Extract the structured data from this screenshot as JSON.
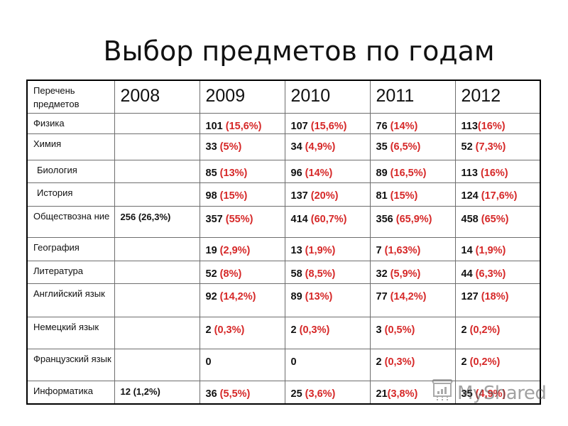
{
  "title": "Выбор предметов по годам",
  "table": {
    "header": {
      "subject_label": "Перечень предметов",
      "years": [
        "2008",
        "2009",
        "2010",
        "2011",
        "2012"
      ]
    },
    "rows": [
      {
        "subject": "Физика",
        "y2008": {
          "num": "",
          "pct": ""
        },
        "cells": [
          {
            "num": "101",
            "pct": "(15,6%)"
          },
          {
            "num": "107",
            "pct": "(15,6%)"
          },
          {
            "num": "76",
            "pct": "(14%)"
          },
          {
            "num": "113",
            "pct": "(16%)"
          }
        ]
      },
      {
        "subject": "Химия",
        "y2008": {
          "num": "",
          "pct": ""
        },
        "cells": [
          {
            "num": "33",
            "pct": "(5%)"
          },
          {
            "num": "34",
            "pct": "(4,9%)"
          },
          {
            "num": "35",
            "pct": "(6,5%)"
          },
          {
            "num": "52",
            "pct": "(7,3%)"
          }
        ]
      },
      {
        "subject": "Биология",
        "y2008": {
          "num": "",
          "pct": ""
        },
        "cells": [
          {
            "num": "85",
            "pct": "(13%)"
          },
          {
            "num": "96",
            "pct": "(14%)"
          },
          {
            "num": "89",
            "pct": "(16,5%)"
          },
          {
            "num": "113",
            "pct": "(16%)"
          }
        ]
      },
      {
        "subject": "История",
        "y2008": {
          "num": "",
          "pct": ""
        },
        "cells": [
          {
            "num": "98",
            "pct": "(15%)"
          },
          {
            "num": "137",
            "pct": "(20%)"
          },
          {
            "num": "81",
            "pct": "(15%)"
          },
          {
            "num": "124",
            "pct": "(17,6%)"
          }
        ]
      },
      {
        "subject": "Обществозна ние",
        "y2008": {
          "num": "256",
          "pct": "(26,3%)"
        },
        "cells": [
          {
            "num": "357",
            "pct": "(55%)"
          },
          {
            "num": "414",
            "pct": "(60,7%)"
          },
          {
            "num": "356",
            "pct": "(65,9%)"
          },
          {
            "num": "458",
            "pct": "(65%)"
          }
        ]
      },
      {
        "subject": "География",
        "y2008": {
          "num": "",
          "pct": ""
        },
        "cells": [
          {
            "num": "19",
            "pct": "(2,9%)"
          },
          {
            "num": "13",
            "pct": "(1,9%)"
          },
          {
            "num": "7",
            "pct": "(1,63%)"
          },
          {
            "num": "14",
            "pct": "(1,9%)"
          }
        ]
      },
      {
        "subject": "Литература",
        "y2008": {
          "num": "",
          "pct": ""
        },
        "cells": [
          {
            "num": "52",
            "pct": "(8%)"
          },
          {
            "num": "58",
            "pct": "(8,5%)"
          },
          {
            "num": "32",
            "pct": "(5,9%)"
          },
          {
            "num": "44",
            "pct": "(6,3%)"
          }
        ]
      },
      {
        "subject": "Английский язык",
        "y2008": {
          "num": "",
          "pct": ""
        },
        "cells": [
          {
            "num": "92",
            "pct": "(14,2%)"
          },
          {
            "num": "89",
            "pct": "(13%)"
          },
          {
            "num": "77",
            "pct": "(14,2%)"
          },
          {
            "num": "127",
            "pct": "(18%)"
          }
        ]
      },
      {
        "subject": "Немецкий язык",
        "y2008": {
          "num": "",
          "pct": ""
        },
        "cells": [
          {
            "num": "2",
            "pct": "(0,3%)"
          },
          {
            "num": "2",
            "pct": "(0,3%)"
          },
          {
            "num": "3",
            "pct": "(0,5%)"
          },
          {
            "num": "2",
            "pct": "(0,2%)"
          }
        ]
      },
      {
        "subject": "Французский язык",
        "y2008": {
          "num": "",
          "pct": ""
        },
        "cells": [
          {
            "num": "0",
            "pct": ""
          },
          {
            "num": "0",
            "pct": ""
          },
          {
            "num": "2",
            "pct": "(0,3%)"
          },
          {
            "num": "2",
            "pct": "(0,2%)"
          }
        ]
      },
      {
        "subject": "Информатика",
        "y2008": {
          "num": "12",
          "pct": "(1,2%)"
        },
        "cells": [
          {
            "num": "36",
            "pct": "(5,5%)"
          },
          {
            "num": "25",
            "pct": "(3,6%)"
          },
          {
            "num": "21",
            "pct": "(3,8%)"
          },
          {
            "num": "35",
            "pct": "(4,9%)"
          }
        ]
      }
    ]
  },
  "colors": {
    "percent_text": "#d62828",
    "number_text": "#111111",
    "border_outer": "#000000",
    "border_inner": "#6e6e6e"
  },
  "watermark": {
    "text": "MyShared",
    "icon": "presentation-board-icon"
  }
}
